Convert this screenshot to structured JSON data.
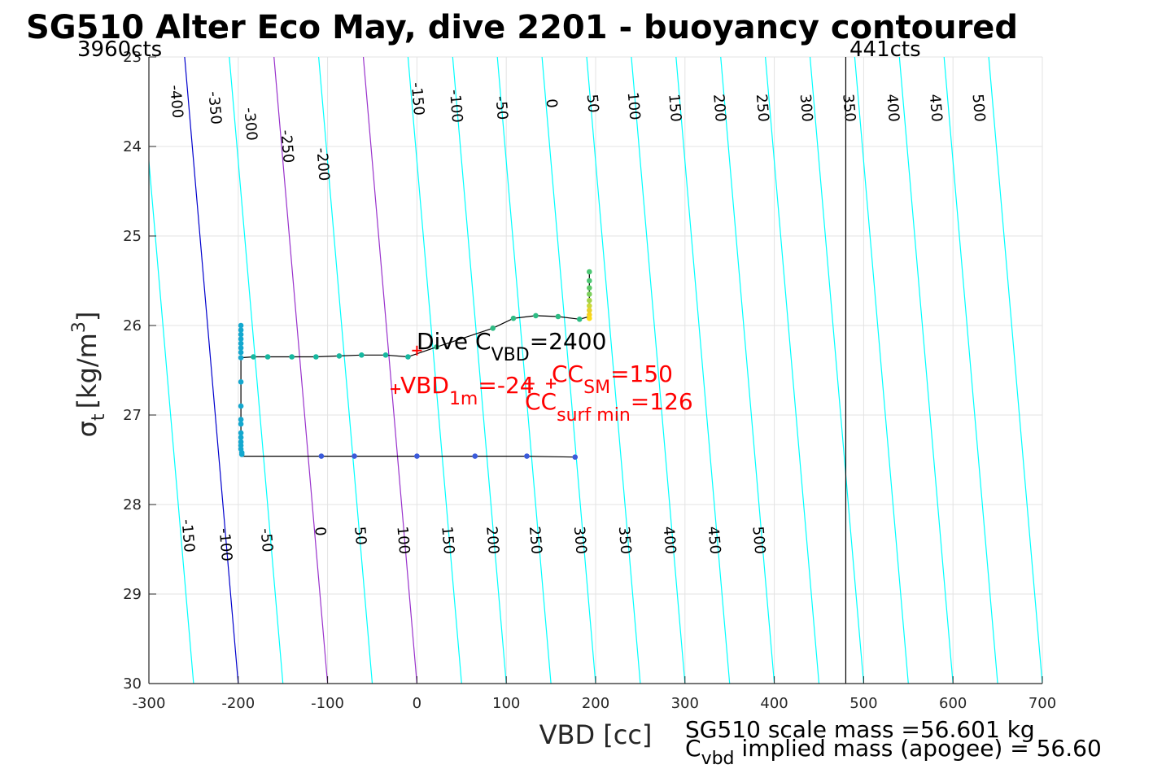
{
  "chart_data": {
    "type": "scatter",
    "title": "SG510 Alter Eco May, dive 2201 - buoyancy contoured",
    "xlabel": "VBD [cc]",
    "ylabel_symbol": "σ",
    "ylabel_sub": "t",
    "ylabel_unit": "[kg/m",
    "ylabel_sup": "3",
    "ylabel_close": "]",
    "xlim": [
      -300,
      700
    ],
    "ylim": [
      23,
      30
    ],
    "y_reversed": true,
    "grid": true,
    "xticks": [
      -300,
      -200,
      -100,
      0,
      100,
      200,
      300,
      400,
      500,
      600,
      700
    ],
    "yticks": [
      23,
      24,
      25,
      26,
      27,
      28,
      29,
      30
    ],
    "contour_x_at_sigma30": [
      -250,
      -200,
      -150,
      -100,
      -50,
      0,
      50,
      100,
      150,
      200,
      250,
      300,
      350,
      400,
      450,
      500,
      550,
      600,
      650,
      700
    ],
    "contour_x_at_sigma23": [
      -310,
      -260,
      -210,
      -160,
      -110,
      -60,
      -10,
      40,
      90,
      140,
      190,
      240,
      290,
      340,
      390,
      440,
      490,
      540,
      590,
      640
    ],
    "contour_slope_cc_per_sigma": 68.5,
    "contour_color": "#00ffff",
    "zero_contour_color": "#0000cd",
    "highlight_contour_color": "#9932cc",
    "highlight_contours": [
      100,
      200
    ],
    "top_contour_labels": [
      {
        "text": "-400",
        "x": -270,
        "y": 23.5
      },
      {
        "text": "-350",
        "x": -227,
        "y": 23.57
      },
      {
        "text": "-300",
        "x": -187,
        "y": 23.75
      },
      {
        "text": "-250",
        "x": -146,
        "y": 24.0
      },
      {
        "text": "-200",
        "x": -106,
        "y": 24.2
      },
      {
        "text": "-150",
        "x": 0,
        "y": 23.47
      },
      {
        "text": "-100",
        "x": 43,
        "y": 23.55
      },
      {
        "text": "-50",
        "x": 94,
        "y": 23.57
      },
      {
        "text": "0",
        "x": 150,
        "y": 23.52
      },
      {
        "text": "50",
        "x": 196,
        "y": 23.52
      },
      {
        "text": "100",
        "x": 242,
        "y": 23.55
      },
      {
        "text": "150",
        "x": 288,
        "y": 23.57
      },
      {
        "text": "200",
        "x": 338,
        "y": 23.57
      },
      {
        "text": "250",
        "x": 386,
        "y": 23.57
      },
      {
        "text": "300",
        "x": 435,
        "y": 23.57
      },
      {
        "text": "350",
        "x": 483,
        "y": 23.57
      },
      {
        "text": "400",
        "x": 532,
        "y": 23.57
      },
      {
        "text": "450",
        "x": 580,
        "y": 23.57
      },
      {
        "text": "500",
        "x": 628,
        "y": 23.57
      }
    ],
    "bottom_contour_labels": [
      {
        "text": "-150",
        "x": -257,
        "y": 28.35
      },
      {
        "text": "-100",
        "x": -215,
        "y": 28.45
      },
      {
        "text": "-50",
        "x": -169,
        "y": 28.4
      },
      {
        "text": "0",
        "x": -109,
        "y": 28.3
      },
      {
        "text": "50",
        "x": -64,
        "y": 28.35
      },
      {
        "text": "100",
        "x": -16,
        "y": 28.4
      },
      {
        "text": "150",
        "x": 34,
        "y": 28.4
      },
      {
        "text": "200",
        "x": 84,
        "y": 28.4
      },
      {
        "text": "250",
        "x": 132,
        "y": 28.4
      },
      {
        "text": "300",
        "x": 182,
        "y": 28.4
      },
      {
        "text": "350",
        "x": 232,
        "y": 28.4
      },
      {
        "text": "400",
        "x": 282,
        "y": 28.4
      },
      {
        "text": "450",
        "x": 332,
        "y": 28.4
      },
      {
        "text": "500",
        "x": 382,
        "y": 28.4
      }
    ],
    "vline": {
      "x": 480,
      "color": "#000000"
    },
    "corner_labels": {
      "left": "3960cts",
      "right": "441cts"
    },
    "track": [
      [
        177,
        27.47
      ],
      [
        123,
        27.46
      ],
      [
        65,
        27.46
      ],
      [
        0,
        27.46
      ],
      [
        -70,
        27.46
      ],
      [
        -107,
        27.46
      ],
      [
        -195,
        27.46
      ],
      [
        -196,
        27.44
      ],
      [
        -196,
        27.4
      ],
      [
        -197,
        27.3
      ],
      [
        -197,
        27.1
      ],
      [
        -197,
        26.9
      ],
      [
        -197,
        26.6
      ],
      [
        -197,
        26.4
      ],
      [
        -197,
        26.36
      ],
      [
        -183,
        26.35
      ],
      [
        -167,
        26.35
      ],
      [
        -140,
        26.35
      ],
      [
        -113,
        26.35
      ],
      [
        -87,
        26.34
      ],
      [
        -62,
        26.33
      ],
      [
        -35,
        26.33
      ],
      [
        -10,
        26.35
      ],
      [
        22,
        26.24
      ],
      [
        85,
        26.03
      ],
      [
        108,
        25.92
      ],
      [
        133,
        25.89
      ],
      [
        158,
        25.9
      ],
      [
        182,
        25.93
      ],
      [
        193,
        25.9
      ],
      [
        193,
        25.4
      ]
    ],
    "points": [
      {
        "x": 177,
        "y": 27.47,
        "c": "#3b5bdb"
      },
      {
        "x": 123,
        "y": 27.46,
        "c": "#3b5bdb"
      },
      {
        "x": 65,
        "y": 27.46,
        "c": "#3b5bdb"
      },
      {
        "x": 0,
        "y": 27.46,
        "c": "#3b5bdb"
      },
      {
        "x": -70,
        "y": 27.46,
        "c": "#3b5bdb"
      },
      {
        "x": -107,
        "y": 27.46,
        "c": "#3b5bdb"
      },
      {
        "x": -196,
        "y": 27.44,
        "c": "#14a8cf"
      },
      {
        "x": -196,
        "y": 27.42,
        "c": "#14a8cf"
      },
      {
        "x": -197,
        "y": 27.38,
        "c": "#14a8cf"
      },
      {
        "x": -197,
        "y": 27.34,
        "c": "#14a8cf"
      },
      {
        "x": -197,
        "y": 27.3,
        "c": "#14a8cf"
      },
      {
        "x": -197,
        "y": 27.25,
        "c": "#14a8cf"
      },
      {
        "x": -197,
        "y": 27.2,
        "c": "#14a8cf"
      },
      {
        "x": -197,
        "y": 27.1,
        "c": "#14a8cf"
      },
      {
        "x": -197,
        "y": 27.05,
        "c": "#14a8cf"
      },
      {
        "x": -197,
        "y": 26.9,
        "c": "#14a8cf"
      },
      {
        "x": -197,
        "y": 26.63,
        "c": "#14a8cf"
      },
      {
        "x": -197,
        "y": 26.36,
        "c": "#14a8cf"
      },
      {
        "x": -197,
        "y": 26.3,
        "c": "#14a8cf"
      },
      {
        "x": -197,
        "y": 26.25,
        "c": "#14a8cf"
      },
      {
        "x": -197,
        "y": 26.2,
        "c": "#14a8cf"
      },
      {
        "x": -197,
        "y": 26.15,
        "c": "#14a8cf"
      },
      {
        "x": -197,
        "y": 26.1,
        "c": "#14a8cf"
      },
      {
        "x": -197,
        "y": 26.05,
        "c": "#14a8cf"
      },
      {
        "x": -197,
        "y": 26.0,
        "c": "#14a8cf"
      },
      {
        "x": -183,
        "y": 26.35,
        "c": "#17b8a0"
      },
      {
        "x": -167,
        "y": 26.35,
        "c": "#17b8a0"
      },
      {
        "x": -140,
        "y": 26.35,
        "c": "#17b8a0"
      },
      {
        "x": -113,
        "y": 26.35,
        "c": "#17b8a0"
      },
      {
        "x": -87,
        "y": 26.34,
        "c": "#17b8a0"
      },
      {
        "x": -62,
        "y": 26.33,
        "c": "#17b8a0"
      },
      {
        "x": -35,
        "y": 26.33,
        "c": "#17b8a0"
      },
      {
        "x": -10,
        "y": 26.35,
        "c": "#17b8a0"
      },
      {
        "x": 22,
        "y": 26.24,
        "c": "#2ebc84"
      },
      {
        "x": 85,
        "y": 26.03,
        "c": "#2ebc84"
      },
      {
        "x": 108,
        "y": 25.92,
        "c": "#2ebc84"
      },
      {
        "x": 133,
        "y": 25.89,
        "c": "#2ebc84"
      },
      {
        "x": 158,
        "y": 25.9,
        "c": "#2ebc84"
      },
      {
        "x": 182,
        "y": 25.93,
        "c": "#2ebc84"
      },
      {
        "x": 193,
        "y": 25.4,
        "c": "#4cc773"
      },
      {
        "x": 193,
        "y": 25.5,
        "c": "#4cc773"
      },
      {
        "x": 193,
        "y": 25.58,
        "c": "#5dc966"
      },
      {
        "x": 193,
        "y": 25.65,
        "c": "#7ccf5c"
      },
      {
        "x": 193,
        "y": 25.72,
        "c": "#a5d44a"
      },
      {
        "x": 193,
        "y": 25.78,
        "c": "#c9d83a"
      },
      {
        "x": 193,
        "y": 25.83,
        "c": "#e6d22b"
      },
      {
        "x": 193,
        "y": 25.88,
        "c": "#f7d21e"
      },
      {
        "x": 193,
        "y": 25.92,
        "c": "#fbdc14"
      }
    ],
    "markers": [
      {
        "x": 0,
        "y": 26.28,
        "color": "#ff0000"
      },
      {
        "x": -24,
        "y": 26.71,
        "color": "#ff0000"
      },
      {
        "x": 126,
        "y": 26.65,
        "color": "#ff0000"
      },
      {
        "x": 150,
        "y": 26.65,
        "color": "#ff0000"
      }
    ],
    "annotations": {
      "dive_cvbd": {
        "prefix": "Dive C",
        "sub": "VBD",
        "value": "=2400",
        "color": "#000000"
      },
      "vbd_1m": {
        "prefix": "VBD",
        "sub": "1m",
        "value": "=-24",
        "color": "#ff0000"
      },
      "cc_sm": {
        "prefix": "CC",
        "sub": "SM",
        "value": "=150",
        "color": "#ff0000"
      },
      "cc_surf": {
        "prefix": "CC",
        "sub": "surf min",
        "value": "=126",
        "color": "#ff0000"
      }
    },
    "footer": {
      "line1": "SG510 scale mass =56.601 kg",
      "line2_prefix": "C",
      "line2_sub": "vbd",
      "line2_text": " implied mass (apogee) = 56.60"
    }
  }
}
